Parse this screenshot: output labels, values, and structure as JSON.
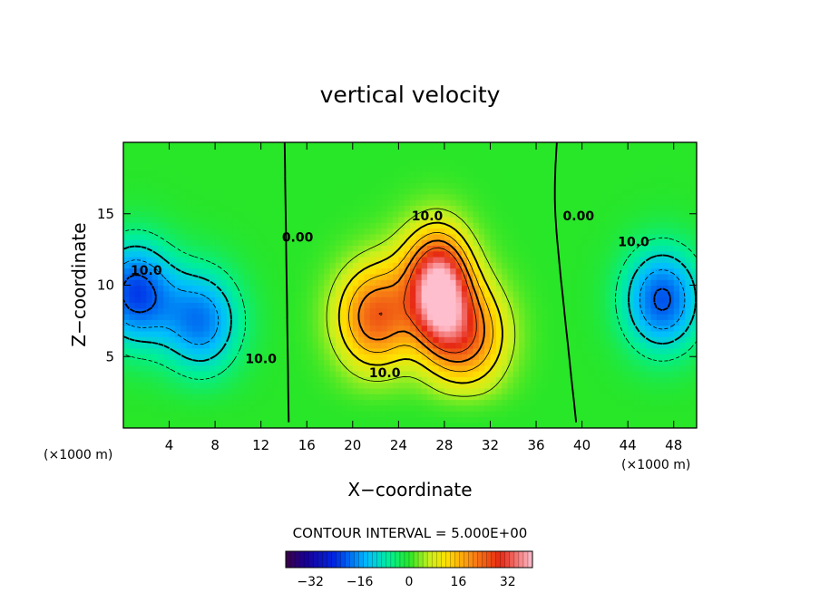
{
  "chart_data": {
    "type": "heatmap",
    "title": "vertical velocity",
    "xlabel": "X−coordinate",
    "ylabel": "Z−coordinate",
    "x_unit_left": "(×1000 m)",
    "x_unit_right": "(×1000 m)",
    "xlim": [
      0,
      50
    ],
    "ylim": [
      0,
      20
    ],
    "xticks": [
      4,
      8,
      12,
      16,
      20,
      24,
      28,
      32,
      36,
      40,
      44,
      48
    ],
    "xtick_labels": [
      "4",
      "8",
      "12",
      "16",
      "20",
      "24",
      "28",
      "32",
      "36",
      "40",
      "44",
      "48"
    ],
    "yticks": [
      5,
      10,
      15
    ],
    "ytick_labels": [
      "5",
      "10",
      "15"
    ],
    "contour_interval_text": "CONTOUR INTERVAL = 5.000E+00",
    "contour_interval": 5,
    "contour_labels": [
      {
        "text": "10.0",
        "x": 26.5,
        "y": 14.8
      },
      {
        "text": "0.00",
        "x": 15.2,
        "y": 13.3
      },
      {
        "text": "0.00",
        "x": 39.7,
        "y": 14.8
      },
      {
        "text": "10.0",
        "x": 22.8,
        "y": 3.8
      },
      {
        "text": "10.0",
        "x": 2.0,
        "y": 11.0
      },
      {
        "text": "10.0",
        "x": 12.0,
        "y": 4.8
      },
      {
        "text": "10.0",
        "x": 44.5,
        "y": 13.0
      }
    ],
    "colorbar": {
      "min": -40,
      "max": 40,
      "ticks": [
        -32,
        -16,
        0,
        16,
        32
      ],
      "tick_labels": [
        "−32",
        "−16",
        "0",
        "16",
        "32"
      ]
    },
    "field": {
      "background": 0,
      "features": [
        {
          "x": 1.0,
          "z": 9.5,
          "amp": -22
        },
        {
          "x": 6.8,
          "z": 7.5,
          "amp": -18
        },
        {
          "x": 47.0,
          "z": 9.0,
          "amp": -21
        },
        {
          "x": 27.6,
          "z": 9.3,
          "amp": 30
        },
        {
          "x": 22.0,
          "z": 7.8,
          "amp": 24
        },
        {
          "x": 30.0,
          "z": 6.5,
          "amp": 22
        },
        {
          "x": 27.0,
          "z": 11.0,
          "amp": 14
        }
      ]
    }
  }
}
